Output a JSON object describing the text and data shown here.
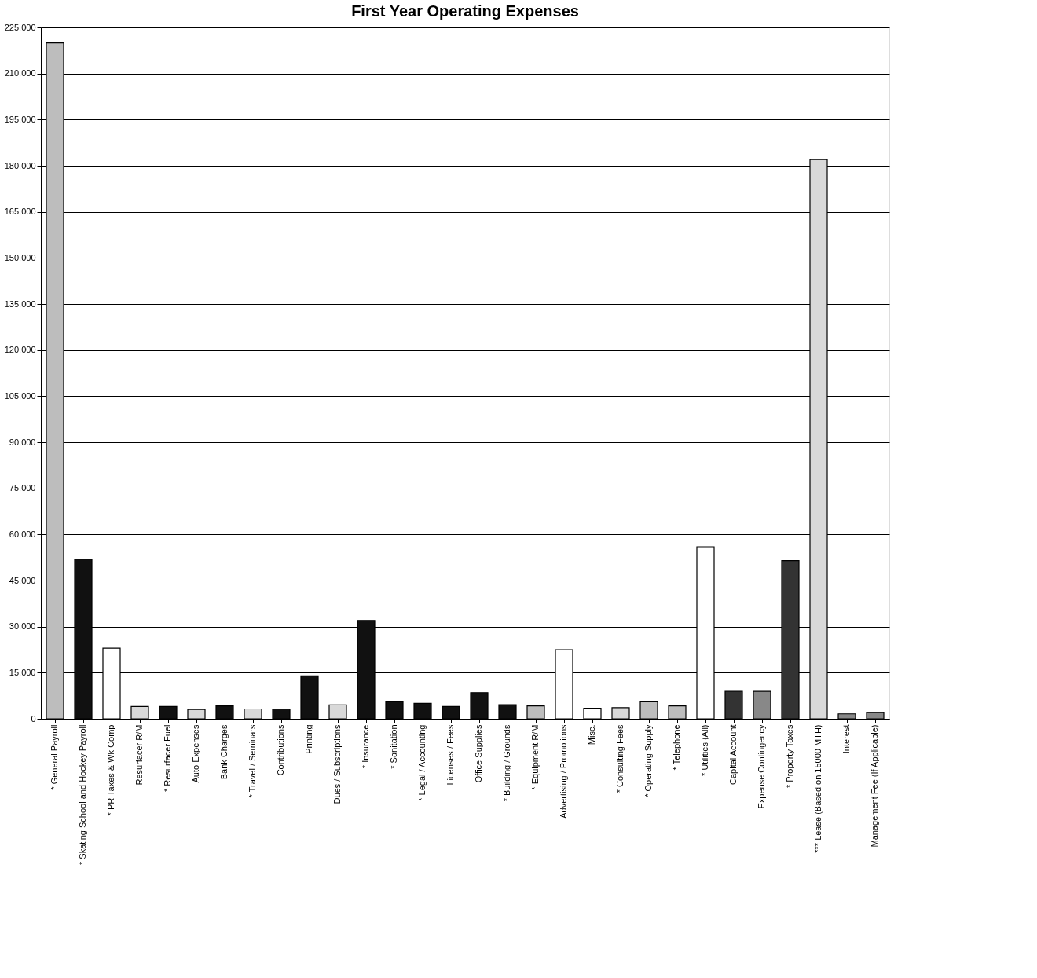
{
  "chart_data": {
    "type": "bar",
    "title": "First Year Operating Expenses",
    "categories": [
      "* General Payroll",
      "* Skating School and Hockey Payroll",
      "* PR Taxes & Wk Comp",
      "Resurfacer R/M",
      "* Resurfacer Fuel",
      "Auto Expenses",
      "Bank Charges",
      "* Travel / Seminars",
      "Contributions",
      "Printing",
      "Dues / Subscriptions",
      "* Insurance",
      "* Sanitation",
      "* Legal / Accounting",
      "Licenses / Fees",
      "Office Supplies",
      "* Building / Grounds",
      "* Equipment R/M",
      "Advertising / Promotions",
      "Misc.",
      "* Consulting Fees",
      "* Operating Supply",
      "* Telephone",
      "* Utilities (All)",
      "Capital Account",
      "Expense Contingency",
      "* Property Taxes",
      "*** Lease (Based on 15000 MTH)",
      "Interest",
      "Management Fee (If Applicable)"
    ],
    "values": [
      220000,
      52000,
      23000,
      4000,
      4000,
      3000,
      4200,
      3200,
      3000,
      14000,
      4500,
      32000,
      5500,
      5000,
      4000,
      8500,
      4600,
      4200,
      22500,
      3400,
      3600,
      5500,
      4200,
      56000,
      8900,
      8900,
      51500,
      182000,
      1600,
      2000
    ],
    "colors": [
      "#bdbdbd",
      "#111111",
      "#ffffff",
      "#d9d9d9",
      "#111111",
      "#d9d9d9",
      "#111111",
      "#d9d9d9",
      "#111111",
      "#111111",
      "#d9d9d9",
      "#111111",
      "#111111",
      "#111111",
      "#111111",
      "#111111",
      "#111111",
      "#bdbdbd",
      "#ffffff",
      "#ffffff",
      "#d9d9d9",
      "#bdbdbd",
      "#bdbdbd",
      "#ffffff",
      "#333333",
      "#888888",
      "#333333",
      "#d9d9d9",
      "#888888",
      "#888888"
    ],
    "ylim": [
      0,
      225000
    ],
    "yticks": [
      {
        "value": 0,
        "label": "0"
      },
      {
        "value": 15000,
        "label": "15,000"
      },
      {
        "value": 30000,
        "label": "30,000"
      },
      {
        "value": 45000,
        "label": "45,000"
      },
      {
        "value": 60000,
        "label": "60,000"
      },
      {
        "value": 75000,
        "label": "75,000"
      },
      {
        "value": 90000,
        "label": "90,000"
      },
      {
        "value": 105000,
        "label": "105,000"
      },
      {
        "value": 120000,
        "label": "120,000"
      },
      {
        "value": 135000,
        "label": "135,000"
      },
      {
        "value": 150000,
        "label": "150,000"
      },
      {
        "value": 165000,
        "label": "165,000"
      },
      {
        "value": 180000,
        "label": "180,000"
      },
      {
        "value": 195000,
        "label": "195,000"
      },
      {
        "value": 210000,
        "label": "210,000"
      },
      {
        "value": 225000,
        "label": "225,000"
      }
    ],
    "grid": "y"
  }
}
